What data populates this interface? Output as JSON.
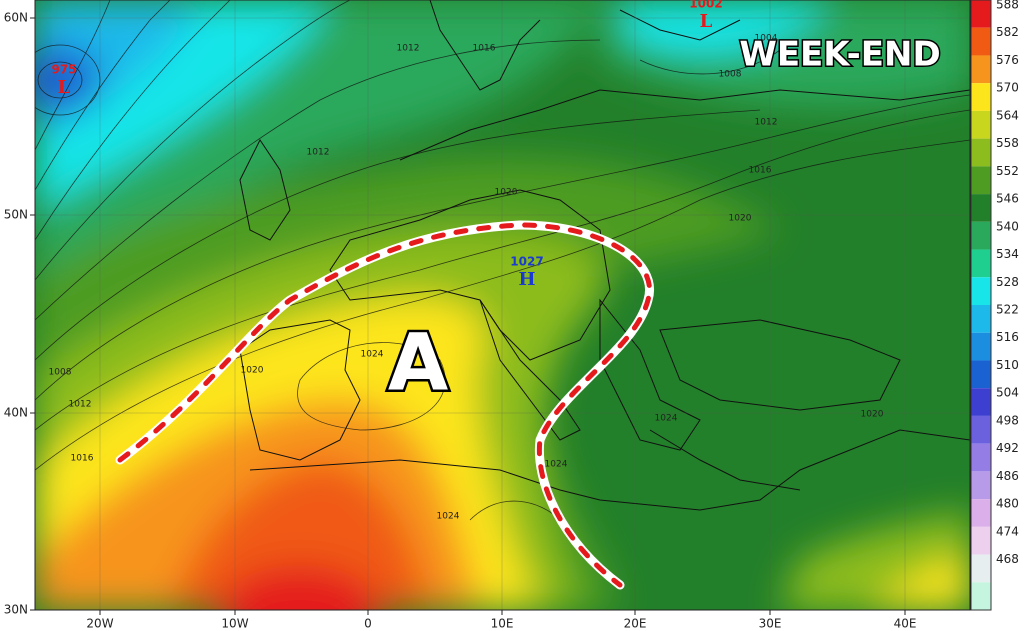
{
  "map": {
    "title": "WEEK-END",
    "anticyclone_letter": "A",
    "lat_labels": [
      "60N",
      "50N",
      "40N",
      "30N"
    ],
    "lon_labels": [
      "20W",
      "10W",
      "0",
      "10E",
      "20E",
      "30E",
      "40E"
    ],
    "centers": [
      {
        "value": "975",
        "letter": "L"
      },
      {
        "value": "1002",
        "letter": "L"
      },
      {
        "value": "1027",
        "letter": "H"
      }
    ],
    "isobar_labels": [
      "1012",
      "1016",
      "1004",
      "1008",
      "1012",
      "1012",
      "1016",
      "1020",
      "1020",
      "1024",
      "1020",
      "1008",
      "1012",
      "1016",
      "1024",
      "1024",
      "1024",
      "1020"
    ],
    "colorbar": {
      "levels": [
        588,
        582,
        576,
        570,
        564,
        558,
        552,
        546,
        540,
        534,
        528,
        522,
        516,
        510,
        504,
        498,
        492,
        486,
        480,
        474,
        468
      ],
      "colors": [
        "#e41a1c",
        "#f05a12",
        "#f7941d",
        "#fde51c",
        "#c8d61e",
        "#8cbc1e",
        "#4e9c22",
        "#23802a",
        "#2aa85c",
        "#1fcf8f",
        "#18e5e8",
        "#1cb9ea",
        "#1b8ee0",
        "#1a62d2",
        "#3d3fd0",
        "#6b61df",
        "#947ee6",
        "#b79ae8",
        "#dbb0ea",
        "#ecd0ee",
        "#e6eef0",
        "#c6f5df"
      ]
    }
  }
}
